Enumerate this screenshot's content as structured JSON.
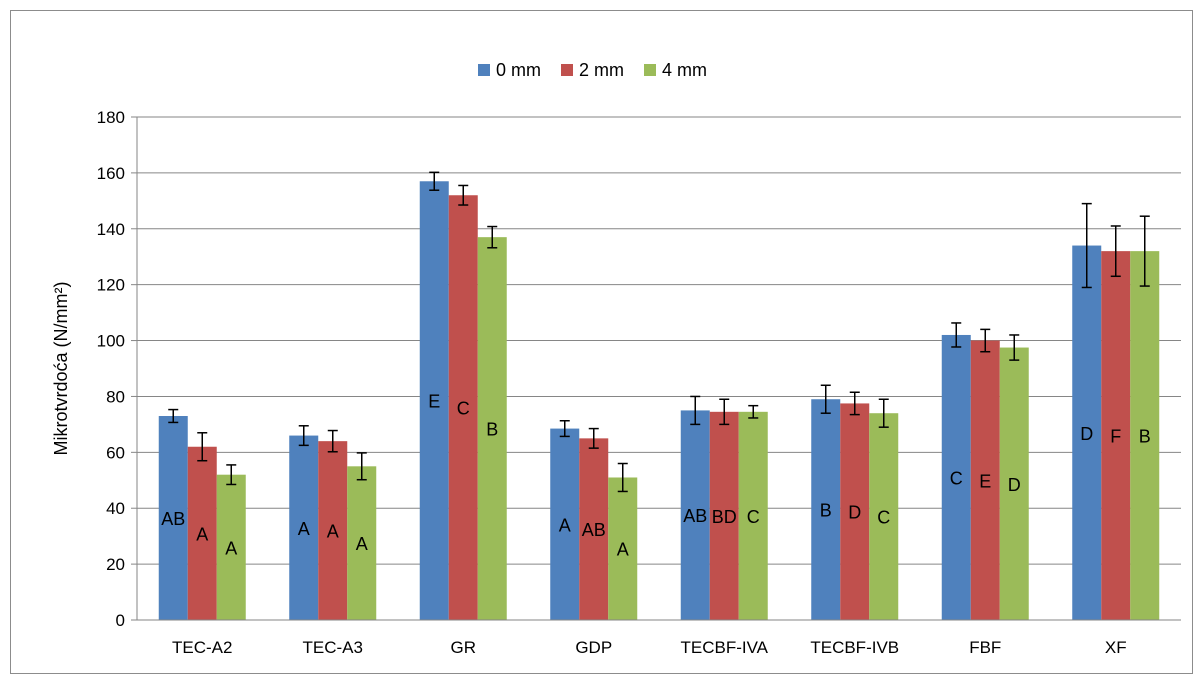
{
  "chart_data": {
    "type": "bar",
    "ylabel": "Mikrotvrdoća (N/mm²)",
    "xlabel": "",
    "ylim": [
      0,
      180
    ],
    "yticks": [
      0,
      20,
      40,
      60,
      80,
      100,
      120,
      140,
      160,
      180
    ],
    "grid": true,
    "legend_position": "top",
    "categories": [
      "TEC-A2",
      "TEC-A3",
      "GR",
      "GDP",
      "TECBF-IVA",
      "TECBF-IVB",
      "FBF",
      "XF"
    ],
    "series": [
      {
        "name": "0 mm",
        "color": "#4f81bd",
        "values": [
          73,
          66,
          157,
          68.5,
          75,
          79,
          102,
          134
        ],
        "errors": [
          2.3,
          3.5,
          3.2,
          2.8,
          5,
          5,
          4.3,
          15
        ],
        "labels": [
          "AB",
          "A",
          "E",
          "A",
          "AB",
          "B",
          "C",
          "D"
        ]
      },
      {
        "name": "2 mm",
        "color": "#c0504d",
        "values": [
          62,
          64,
          152,
          65,
          74.5,
          77.5,
          100,
          132
        ],
        "errors": [
          5,
          3.8,
          3.5,
          3.5,
          4.5,
          4,
          4,
          9
        ],
        "labels": [
          "A",
          "A",
          "C",
          "AB",
          "BD",
          "D",
          "E",
          "F"
        ]
      },
      {
        "name": "4 mm",
        "color": "#9bbb59",
        "values": [
          52,
          55,
          137,
          51,
          74.5,
          74,
          97.5,
          132
        ],
        "errors": [
          3.5,
          4.8,
          3.8,
          5,
          2.2,
          5,
          4.5,
          12.5
        ],
        "labels": [
          "A",
          "A",
          "B",
          "A",
          "C",
          "C",
          "D",
          "B"
        ]
      }
    ]
  }
}
